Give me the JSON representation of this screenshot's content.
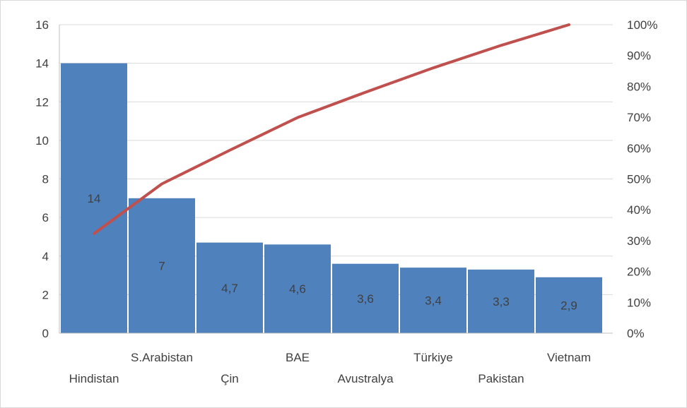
{
  "chart_data": {
    "type": "bar",
    "combo": "pareto",
    "categories": [
      "Hindistan",
      "S.Arabistan",
      "Çin",
      "BAE",
      "Avustralya",
      "Türkiye",
      "Pakistan",
      "Vietnam"
    ],
    "category_labels": [
      "Hindistan",
      "S.Arabistan",
      "Çin",
      "BAE",
      "Avustralya",
      "Türkiye",
      "Pakistan",
      "Vietnam"
    ],
    "data_labels": [
      "14",
      "7",
      "4,7",
      "4,6",
      "3,6",
      "3,4",
      "3,3",
      "2,9"
    ],
    "series": [
      {
        "type": "bar",
        "axis": "left",
        "values": [
          14,
          7,
          4.7,
          4.6,
          3.6,
          3.4,
          3.3,
          2.9
        ]
      },
      {
        "type": "line",
        "axis": "right",
        "values": [
          32.3,
          48.4,
          59.3,
          69.9,
          78.1,
          86.0,
          93.3,
          100.0
        ]
      }
    ],
    "y_left": {
      "min": 0,
      "max": 16,
      "ticks": [
        0,
        2,
        4,
        6,
        8,
        10,
        12,
        14,
        16
      ],
      "tick_labels": [
        "0",
        "2",
        "4",
        "6",
        "8",
        "10",
        "12",
        "14",
        "16"
      ]
    },
    "y_right": {
      "min": 0,
      "max": 100,
      "ticks": [
        0,
        10,
        20,
        30,
        40,
        50,
        60,
        70,
        80,
        90,
        100
      ],
      "tick_labels": [
        "0%",
        "10%",
        "20%",
        "30%",
        "40%",
        "50%",
        "60%",
        "70%",
        "80%",
        "90%",
        "100%"
      ]
    },
    "grid": true,
    "legend": "none",
    "colors": {
      "bar": "#4f81bd",
      "line": "#c0504d",
      "grid": "#d9d9d9",
      "axis": "#bfbfbf"
    }
  }
}
